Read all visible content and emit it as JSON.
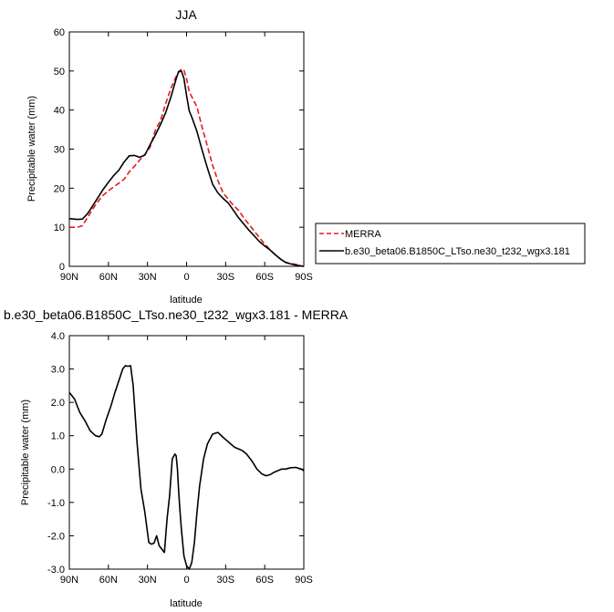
{
  "chart_data": [
    {
      "type": "line",
      "title": "JJA",
      "xlabel": "latitude",
      "ylabel": "Precipitable water (mm)",
      "xlim": [
        90,
        -90
      ],
      "ylim": [
        0,
        60
      ],
      "x_ticks": [
        {
          "value": 90,
          "label": "90N"
        },
        {
          "value": 60,
          "label": "60N"
        },
        {
          "value": 30,
          "label": "30N"
        },
        {
          "value": 0,
          "label": "0"
        },
        {
          "value": -30,
          "label": "30S"
        },
        {
          "value": -60,
          "label": "60S"
        },
        {
          "value": -90,
          "label": "90S"
        }
      ],
      "y_ticks": [
        {
          "value": 0,
          "label": "0"
        },
        {
          "value": 10,
          "label": "10"
        },
        {
          "value": 20,
          "label": "20"
        },
        {
          "value": 30,
          "label": "30"
        },
        {
          "value": 40,
          "label": "40"
        },
        {
          "value": 50,
          "label": "50"
        },
        {
          "value": 60,
          "label": "60"
        }
      ],
      "grid": false,
      "legend_position": "right",
      "series": [
        {
          "name": "MERRA",
          "color": "#e8191b",
          "dash": "dashed",
          "x": [
            90,
            84,
            80,
            76,
            72,
            68,
            64,
            60,
            56,
            52,
            48,
            44,
            40,
            36,
            32,
            28,
            24,
            20,
            16,
            12,
            8,
            6,
            4,
            2,
            0,
            -2,
            -4,
            -8,
            -12,
            -16,
            -20,
            -24,
            -28,
            -32,
            -36,
            -40,
            -44,
            -48,
            -52,
            -56,
            -60,
            -64,
            -68,
            -72,
            -76,
            -80,
            -84,
            -88,
            -90
          ],
          "y": [
            10,
            10,
            10.4,
            12.5,
            14.7,
            16.6,
            18.2,
            19.3,
            20.3,
            21.3,
            22.3,
            24.2,
            25.6,
            27.2,
            28.6,
            30.5,
            34.8,
            37.3,
            41.7,
            45.6,
            48.6,
            49.6,
            50.5,
            50.2,
            48,
            44.7,
            43.4,
            40.8,
            35.5,
            30.8,
            25.8,
            22,
            18.8,
            17.2,
            15.6,
            14.3,
            12.4,
            10.7,
            9,
            7.3,
            5.7,
            4.3,
            2.9,
            1.9,
            1,
            0.7,
            0.5,
            0.1,
            0
          ]
        },
        {
          "name": "b.e30_beta06.B1850C_LTso.ne30_t232_wgx3.181",
          "color": "#000000",
          "dash": "solid",
          "x": [
            90,
            84,
            80,
            76,
            72,
            68,
            64,
            60,
            56,
            52,
            48,
            44,
            40,
            36,
            32,
            28,
            24,
            20,
            16,
            12,
            8,
            6,
            4,
            2,
            0,
            -2,
            -4,
            -8,
            -12,
            -16,
            -20,
            -24,
            -28,
            -32,
            -36,
            -40,
            -44,
            -48,
            -52,
            -56,
            -60,
            -64,
            -68,
            -72,
            -76,
            -80,
            -84,
            -88,
            -90
          ],
          "y": [
            12.2,
            12,
            12.1,
            13.5,
            15.5,
            17.6,
            19.7,
            21.5,
            23.2,
            24.6,
            26.7,
            28.3,
            28.4,
            27.9,
            28.5,
            31.1,
            33.6,
            36.3,
            39.4,
            43.4,
            48,
            49.9,
            50,
            48.1,
            43.7,
            39.8,
            38.2,
            34.5,
            29.7,
            25.2,
            21,
            18.8,
            17.4,
            16.2,
            14.3,
            12.4,
            10.8,
            9.2,
            7.8,
            6.3,
            5.2,
            4.2,
            3,
            1.9,
            1,
            0.6,
            0.3,
            0.1,
            0
          ]
        }
      ]
    },
    {
      "type": "line",
      "title": "b.e30_beta06.B1850C_LTso.ne30_t232_wgx3.181 - MERRA",
      "xlabel": "latitude",
      "ylabel": "Precipitable water (mm)",
      "xlim": [
        90,
        -90
      ],
      "ylim": [
        -3,
        4
      ],
      "x_ticks": [
        {
          "value": 90,
          "label": "90N"
        },
        {
          "value": 60,
          "label": "60N"
        },
        {
          "value": 30,
          "label": "30N"
        },
        {
          "value": 0,
          "label": "0"
        },
        {
          "value": -30,
          "label": "30S"
        },
        {
          "value": -60,
          "label": "60S"
        },
        {
          "value": -90,
          "label": "90S"
        }
      ],
      "y_ticks": [
        {
          "value": -3,
          "label": "-3.0"
        },
        {
          "value": -2,
          "label": "-2.0"
        },
        {
          "value": -1,
          "label": "-1.0"
        },
        {
          "value": 0,
          "label": "0.0"
        },
        {
          "value": 1,
          "label": "1.0"
        },
        {
          "value": 2,
          "label": "2.0"
        },
        {
          "value": 3,
          "label": "3.0"
        },
        {
          "value": 4,
          "label": "4.0"
        }
      ],
      "grid": false,
      "series": [
        {
          "color": "#000000",
          "dash": "solid",
          "x": [
            90,
            86,
            82,
            78,
            74,
            70,
            67,
            65,
            62,
            58,
            55,
            52,
            49,
            47,
            45,
            43,
            41,
            38,
            35,
            32,
            29,
            27,
            25,
            23,
            21,
            19,
            17,
            15,
            13,
            11,
            9,
            8,
            7,
            6,
            5,
            4,
            2,
            0,
            -2,
            -4,
            -6,
            -8,
            -10,
            -13,
            -16,
            -20,
            -24,
            -28,
            -31,
            -34,
            -37,
            -40,
            -43,
            -46,
            -50,
            -54,
            -58,
            -61,
            -64,
            -67,
            -70,
            -73,
            -76,
            -80,
            -84,
            -88,
            -90
          ],
          "y": [
            2.3,
            2.1,
            1.7,
            1.45,
            1.15,
            1.0,
            0.97,
            1.05,
            1.45,
            1.9,
            2.3,
            2.65,
            3.0,
            3.1,
            3.08,
            3.1,
            2.5,
            0.8,
            -0.6,
            -1.3,
            -2.2,
            -2.25,
            -2.22,
            -2.0,
            -2.3,
            -2.4,
            -2.5,
            -1.5,
            -0.8,
            0.3,
            0.45,
            0.4,
            0.0,
            -0.7,
            -1.3,
            -1.8,
            -2.6,
            -2.9,
            -3.0,
            -2.8,
            -2.2,
            -1.3,
            -0.5,
            0.3,
            0.75,
            1.05,
            1.1,
            0.95,
            0.85,
            0.75,
            0.65,
            0.6,
            0.55,
            0.45,
            0.25,
            0.0,
            -0.15,
            -0.2,
            -0.17,
            -0.1,
            -0.05,
            0.0,
            0.0,
            0.04,
            0.05,
            0.0,
            -0.05
          ]
        }
      ]
    }
  ]
}
